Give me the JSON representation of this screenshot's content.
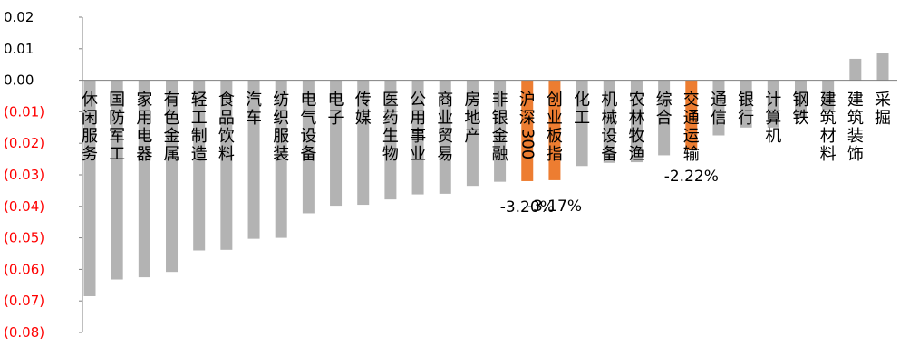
{
  "chart_data": {
    "type": "bar",
    "title": "",
    "xlabel": "",
    "ylabel": "",
    "ylim": [
      -0.08,
      0.02
    ],
    "yticks": [
      0.02,
      0.01,
      0.0,
      -0.01,
      -0.02,
      -0.03,
      -0.04,
      -0.05,
      -0.06,
      -0.07,
      -0.08
    ],
    "ytick_labels": [
      "0.02",
      "0.01",
      "0.00",
      "(0.01)",
      "(0.02)",
      "(0.03)",
      "(0.04)",
      "(0.05)",
      "(0.06)",
      "(0.07)",
      "(0.08)"
    ],
    "grid": false,
    "legend": "none",
    "colors": {
      "default": "#b3b3b3",
      "highlight": "#ed7d31",
      "negative_tick": "#ff0000",
      "positive_tick": "#000000",
      "axis": "#7f7f7f"
    },
    "categories": [
      "休闲服务",
      "国防军工",
      "家用电器",
      "有色金属",
      "轻工制造",
      "食品饮料",
      "汽车",
      "纺织服装",
      "电气设备",
      "电子",
      "传媒",
      "医药生物",
      "公用事业",
      "商业贸易",
      "房地产",
      "非银金融",
      "沪深300",
      "创业板指",
      "化工",
      "机械设备",
      "农林牧渔",
      "综合",
      "交通运输",
      "通信",
      "银行",
      "计算机",
      "钢铁",
      "建筑材料",
      "建筑装饰",
      "采掘"
    ],
    "values": [
      -0.0685,
      -0.0632,
      -0.0625,
      -0.0608,
      -0.054,
      -0.0538,
      -0.0503,
      -0.05,
      -0.0422,
      -0.0398,
      -0.0395,
      -0.0378,
      -0.0362,
      -0.036,
      -0.0335,
      -0.0322,
      -0.032,
      -0.0317,
      -0.0272,
      -0.0262,
      -0.026,
      -0.0238,
      -0.0222,
      -0.0175,
      -0.015,
      -0.015,
      -0.012,
      -0.0095,
      0.0068,
      0.0085
    ],
    "highlighted": [
      "沪深300",
      "创业板指",
      "交通运输"
    ],
    "data_labels": [
      {
        "category": "沪深300",
        "text": "-3.20%"
      },
      {
        "category": "创业板指",
        "text": "-3.17%"
      },
      {
        "category": "交通运输",
        "text": "-2.22%"
      }
    ]
  }
}
